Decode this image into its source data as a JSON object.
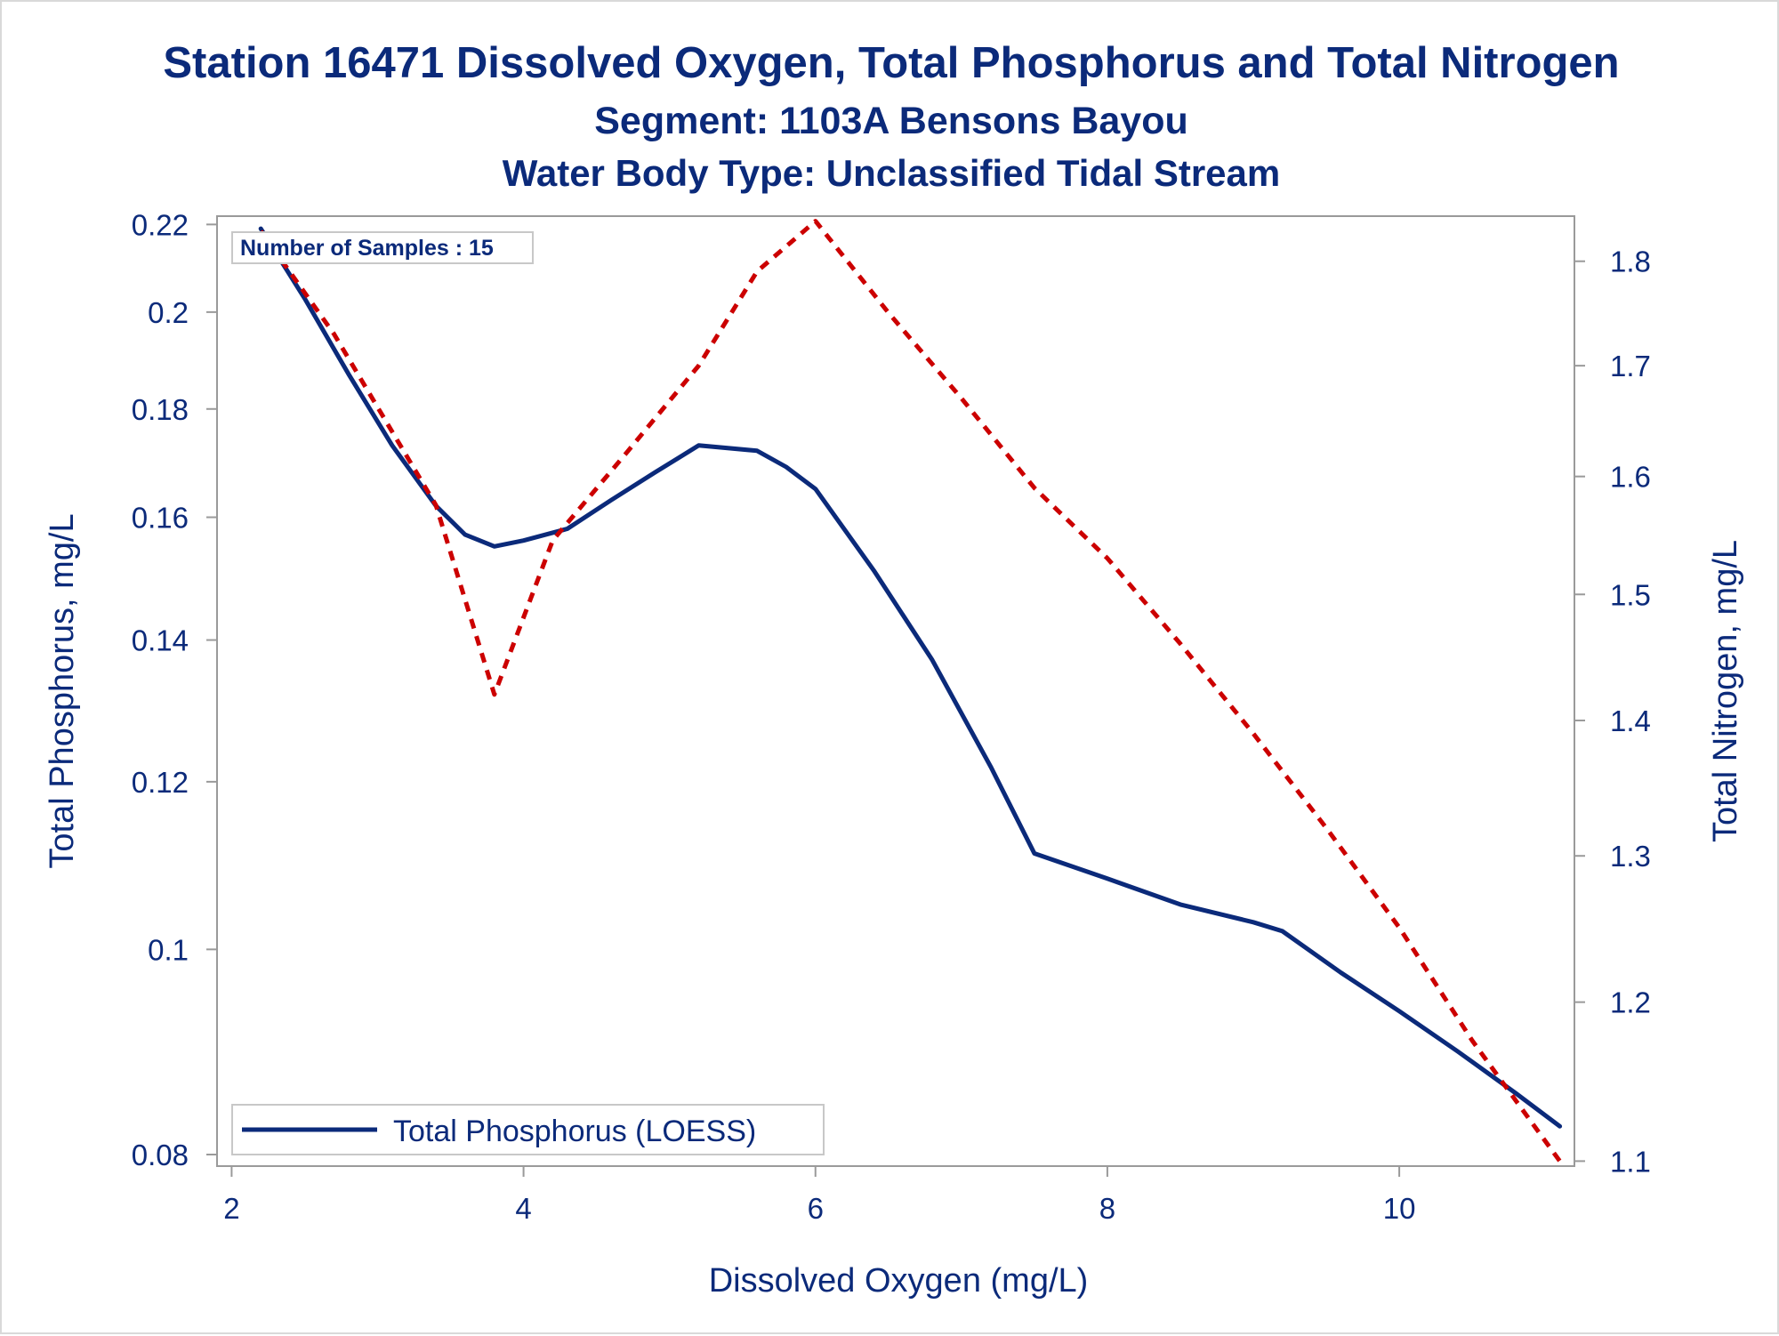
{
  "colors": {
    "text": "#0b2a7a",
    "phosphorus_line": "#0b2a7a",
    "nitrogen_line": "#cc0000",
    "axis": "#9a9a9a"
  },
  "chart_data": {
    "type": "line",
    "title": "Station 16471  Dissolved Oxygen, Total Phosphorus and Total Nitrogen",
    "subtitle": "Segment: 1103A  Bensons Bayou",
    "subtitle2": "Water Body Type: Unclassified Tidal Stream",
    "xlabel": "Dissolved Oxygen (mg/L)",
    "ylabel": "Total Phosphorus, mg/L",
    "y2label": "Total Nitrogen, mg/L",
    "xlim": [
      1.9,
      11.2
    ],
    "ylim": [
      0.079,
      0.222
    ],
    "y_scale": "log",
    "y2lim": [
      1.097,
      1.845
    ],
    "y2_scale": "log",
    "x_ticks": [
      2,
      4,
      6,
      8,
      10
    ],
    "y_ticks": [
      0.08,
      0.1,
      0.12,
      0.14,
      0.16,
      0.18,
      0.2,
      0.22
    ],
    "y2_ticks": [
      1.1,
      1.2,
      1.3,
      1.4,
      1.5,
      1.6,
      1.7,
      1.8
    ],
    "annotation": "Number of Samples : 15",
    "legend_position": "bottom-left",
    "legend": [
      "Total Phosphorus (LOESS)"
    ],
    "series": [
      {
        "name": "Total Phosphorus (LOESS)",
        "axis": "left",
        "style": "solid",
        "x": [
          2.2,
          2.5,
          2.8,
          3.1,
          3.4,
          3.6,
          3.8,
          4.0,
          4.3,
          4.6,
          4.9,
          5.2,
          5.6,
          5.8,
          6.0,
          6.4,
          6.8,
          7.2,
          7.5,
          8.0,
          8.5,
          9.0,
          9.2,
          9.6,
          10.0,
          10.4,
          10.8,
          11.1
        ],
        "y": [
          0.219,
          0.203,
          0.187,
          0.173,
          0.162,
          0.157,
          0.155,
          0.156,
          0.158,
          0.163,
          0.168,
          0.173,
          0.172,
          0.169,
          0.165,
          0.151,
          0.137,
          0.122,
          0.111,
          0.108,
          0.105,
          0.103,
          0.102,
          0.0975,
          0.0935,
          0.0895,
          0.0855,
          0.0825
        ]
      },
      {
        "name": "",
        "axis": "right",
        "style": "dashed",
        "x": [
          2.2,
          2.7,
          3.4,
          3.8,
          4.2,
          4.7,
          5.2,
          5.6,
          6.0,
          6.5,
          7.0,
          7.5,
          8.0,
          8.5,
          9.0,
          9.5,
          10.0,
          10.5,
          11.1
        ],
        "y": [
          1.83,
          1.73,
          1.575,
          1.42,
          1.545,
          1.62,
          1.7,
          1.79,
          1.84,
          1.75,
          1.67,
          1.59,
          1.53,
          1.46,
          1.39,
          1.32,
          1.25,
          1.175,
          1.1
        ]
      }
    ]
  }
}
